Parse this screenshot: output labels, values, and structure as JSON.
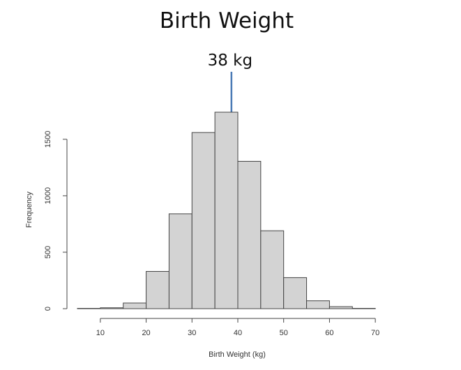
{
  "chart_data": {
    "type": "bar",
    "title": "Birth Weight",
    "xlabel": "Birth Weight (kg)",
    "ylabel": "Frequency",
    "bins": [
      {
        "start": 5,
        "end": 10,
        "value": 3
      },
      {
        "start": 10,
        "end": 15,
        "value": 8
      },
      {
        "start": 15,
        "end": 20,
        "value": 50
      },
      {
        "start": 20,
        "end": 25,
        "value": 330
      },
      {
        "start": 25,
        "end": 30,
        "value": 840
      },
      {
        "start": 30,
        "end": 35,
        "value": 1560
      },
      {
        "start": 35,
        "end": 40,
        "value": 1740
      },
      {
        "start": 40,
        "end": 45,
        "value": 1305
      },
      {
        "start": 45,
        "end": 50,
        "value": 690
      },
      {
        "start": 50,
        "end": 55,
        "value": 275
      },
      {
        "start": 55,
        "end": 60,
        "value": 70
      },
      {
        "start": 60,
        "end": 65,
        "value": 18
      },
      {
        "start": 65,
        "end": 70,
        "value": 3
      }
    ],
    "xlim": [
      5,
      75
    ],
    "ylim": [
      0,
      1800
    ],
    "xticks": [
      10,
      20,
      30,
      40,
      50,
      60,
      70
    ],
    "yticks": [
      0,
      500,
      1000,
      1500
    ],
    "grid": false,
    "annotation": {
      "text": "38 kg",
      "x": 38,
      "arrow_color": "#4a7ab5"
    }
  }
}
